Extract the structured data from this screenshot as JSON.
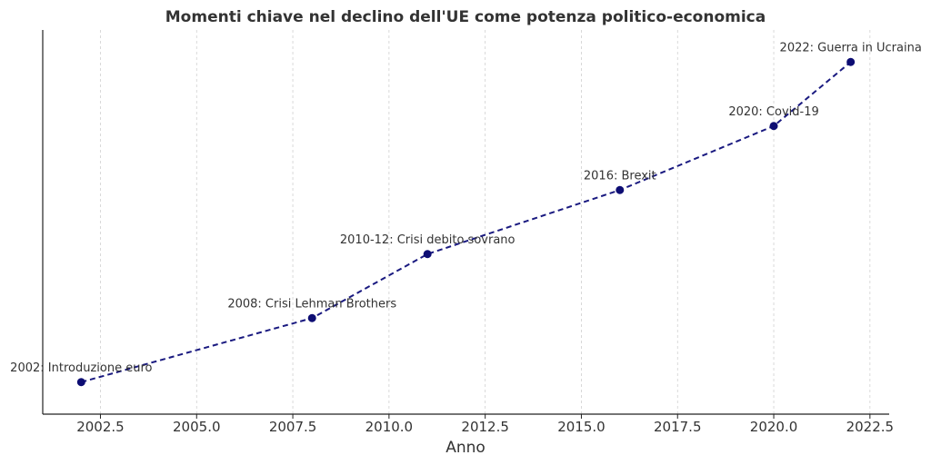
{
  "chart_data": {
    "type": "line",
    "title": "Momenti chiave nel declino dell'UE come potenza politico-economica",
    "xlabel": "Anno",
    "ylabel": "",
    "xlim": [
      2001,
      2023
    ],
    "ylim": [
      0.5,
      6.5
    ],
    "xticks": [
      2002.5,
      2005.0,
      2007.5,
      2010.0,
      2012.5,
      2015.0,
      2017.5,
      2020.0,
      2022.5
    ],
    "xtick_labels": [
      "2002.5",
      "2005.0",
      "2007.5",
      "2010.0",
      "2012.5",
      "2015.0",
      "2017.5",
      "2020.0",
      "2022.5"
    ],
    "grid": "x-dashed",
    "line_color": "#1a1a80",
    "marker_color": "#0d0d73",
    "points": [
      {
        "x": 2002,
        "y": 1,
        "label": "2002: Introduzione euro"
      },
      {
        "x": 2008,
        "y": 2,
        "label": "2008: Crisi Lehman Brothers"
      },
      {
        "x": 2011,
        "y": 3,
        "label": "2010-12: Crisi debito sovrano"
      },
      {
        "x": 2016,
        "y": 4,
        "label": "2016: Brexit"
      },
      {
        "x": 2020,
        "y": 5,
        "label": "2020: Covid-19"
      },
      {
        "x": 2022,
        "y": 6,
        "label": "2022: Guerra in Ucraina"
      }
    ]
  }
}
